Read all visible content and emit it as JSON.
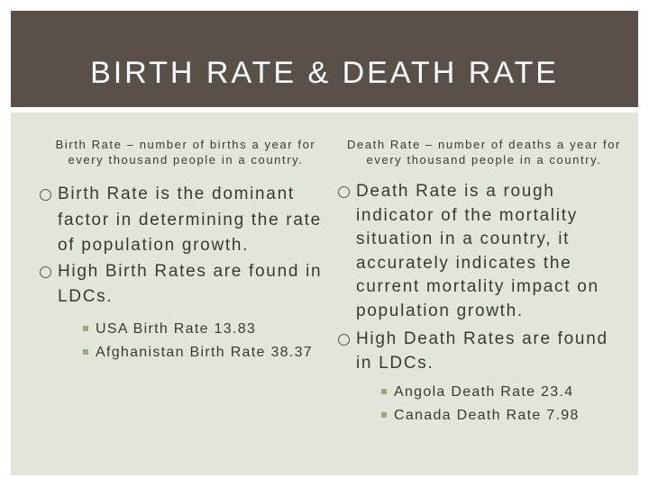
{
  "slide": {
    "title": "BIRTH RATE & DEATH RATE"
  },
  "left": {
    "subheading": "Birth Rate – number of births a year for every thousand people in a country.",
    "bullets": [
      "Birth Rate is the dominant factor in determining the rate of population growth.",
      "High Birth Rates are found in LDCs."
    ],
    "subbullets": [
      "USA Birth Rate 13.83",
      "Afghanistan Birth Rate 38.37"
    ]
  },
  "right": {
    "subheading": "Death Rate – number of deaths a year for every thousand people in a country.",
    "bullets": [
      "Death Rate is a rough indicator of the mortality situation in a country, it accurately indicates the current mortality impact on population growth.",
      "High Death Rates are found in LDCs."
    ],
    "subbullets": [
      "Angola Death Rate 23.4",
      "Canada Death Rate 7.98"
    ]
  },
  "colors": {
    "title_bar": "#585049",
    "content_bg": "#e0e7d9",
    "text": "#3d3732",
    "sub_bullet": "#9aa88a"
  }
}
